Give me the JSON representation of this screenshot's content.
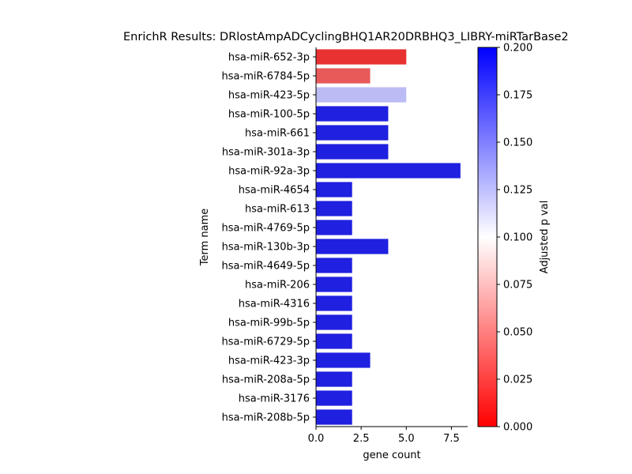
{
  "chart_data": {
    "type": "bar",
    "orientation": "horizontal",
    "title": "EnrichR Results: DRlostAmpADCyclingBHQ1AR20DRBHQ3_LIBRY-miRTarBase2",
    "xlabel": "gene count",
    "ylabel": "Term name",
    "xlim": [
      0,
      8.4
    ],
    "x_ticks": [
      "0.0",
      "2.5",
      "5.0",
      "7.5"
    ],
    "x_tick_values": [
      0,
      2.5,
      5,
      7.5
    ],
    "grid": false,
    "categories": [
      "hsa-miR-652-3p",
      "hsa-miR-6784-5p",
      "hsa-miR-423-5p",
      "hsa-miR-100-5p",
      "hsa-miR-661",
      "hsa-miR-301a-3p",
      "hsa-miR-92a-3p",
      "hsa-miR-4654",
      "hsa-miR-613",
      "hsa-miR-4769-5p",
      "hsa-miR-130b-3p",
      "hsa-miR-4649-5p",
      "hsa-miR-206",
      "hsa-miR-4316",
      "hsa-miR-99b-5p",
      "hsa-miR-6729-5p",
      "hsa-miR-423-3p",
      "hsa-miR-208a-5p",
      "hsa-miR-3176",
      "hsa-miR-208b-5p"
    ],
    "values": [
      5,
      3,
      5,
      4,
      4,
      4,
      8,
      2,
      2,
      2,
      4,
      2,
      2,
      2,
      2,
      2,
      3,
      2,
      2,
      2
    ],
    "bar_colors": [
      "#e83232",
      "#e85a5a",
      "#bcbcf4",
      "#2020e0",
      "#2020e0",
      "#2020e0",
      "#2020e0",
      "#2020e0",
      "#2020e0",
      "#2020e0",
      "#2020e0",
      "#2020e0",
      "#2020e0",
      "#2020e0",
      "#2020e0",
      "#2020e0",
      "#2020e0",
      "#2020e0",
      "#2020e0",
      "#2020e0"
    ],
    "colorbar": {
      "label": "Adjusted p val",
      "range": [
        0,
        0.2
      ],
      "ticks": [
        "0.000",
        "0.025",
        "0.050",
        "0.075",
        "0.100",
        "0.125",
        "0.150",
        "0.175",
        "0.200"
      ],
      "tick_values": [
        0,
        0.025,
        0.05,
        0.075,
        0.1,
        0.125,
        0.15,
        0.175,
        0.2
      ],
      "colormap": [
        "#ff0000",
        "#ffffff",
        "#0000ff"
      ]
    }
  }
}
